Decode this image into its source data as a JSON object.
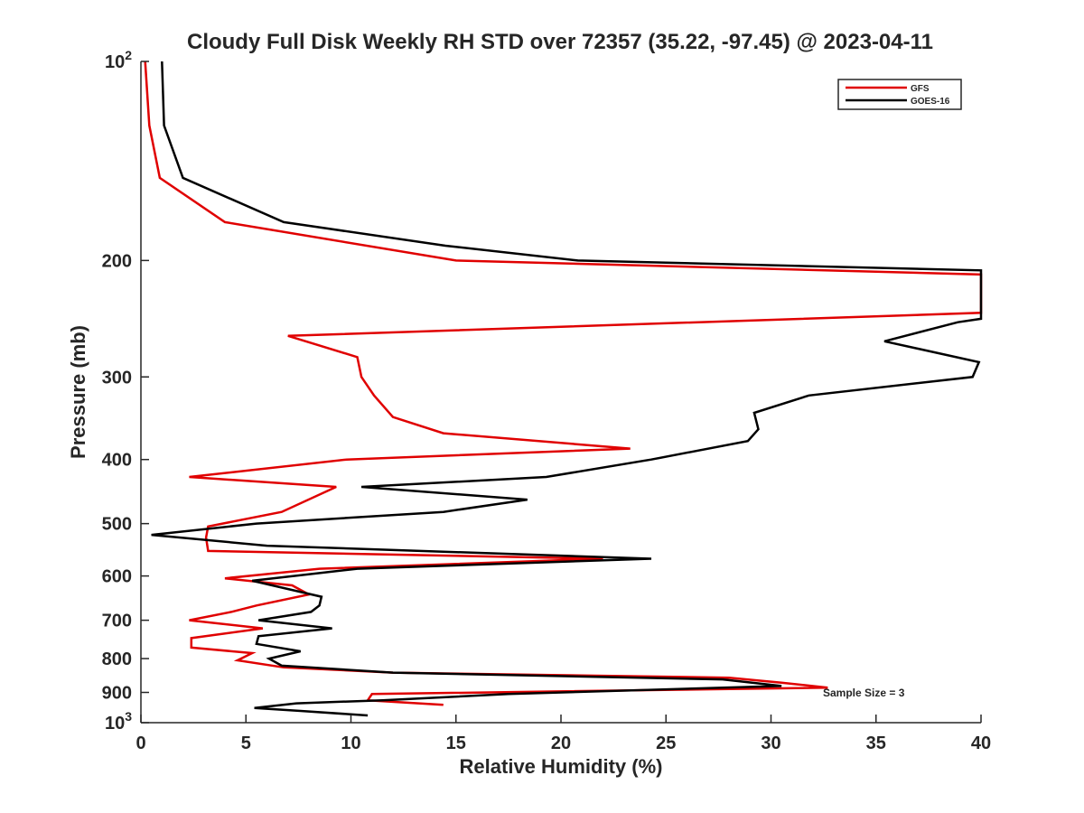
{
  "chart_data": {
    "type": "line",
    "title": "Cloudy Full Disk Weekly RH STD over 72357 (35.22, -97.45) @ 2023-04-11",
    "xlabel": "Relative Humidity (%)",
    "ylabel": "Pressure (mb)",
    "xlim": [
      0,
      40
    ],
    "ylim": [
      100,
      1000
    ],
    "y_scale": "log",
    "y_reversed": true,
    "grid": false,
    "x_ticks": [
      "0",
      "5",
      "10",
      "15",
      "20",
      "25",
      "30",
      "35",
      "40"
    ],
    "y_ticks": [
      {
        "value": 100,
        "base": "10",
        "exp": "2"
      },
      {
        "value": 200,
        "label": "200"
      },
      {
        "value": 300,
        "label": "300"
      },
      {
        "value": 400,
        "label": "400"
      },
      {
        "value": 500,
        "label": "500"
      },
      {
        "value": 600,
        "label": "600"
      },
      {
        "value": 700,
        "label": "700"
      },
      {
        "value": 800,
        "label": "800"
      },
      {
        "value": 900,
        "label": "900"
      },
      {
        "value": 1000,
        "base": "10",
        "exp": "3"
      }
    ],
    "legend_position": "top-right",
    "annotation": "Sample Size = 3",
    "series": [
      {
        "name": "GFS",
        "color": "#e00000",
        "points": [
          [
            0.2,
            100
          ],
          [
            0.4,
            125
          ],
          [
            0.9,
            150
          ],
          [
            4.0,
            175
          ],
          [
            15.0,
            200
          ],
          [
            40,
            210
          ],
          [
            40,
            240
          ],
          [
            7.0,
            260
          ],
          [
            10.3,
            280
          ],
          [
            10.5,
            300
          ],
          [
            11.1,
            320
          ],
          [
            12.0,
            345
          ],
          [
            14.4,
            365
          ],
          [
            23.3,
            385
          ],
          [
            9.8,
            400
          ],
          [
            2.3,
            425
          ],
          [
            9.3,
            440
          ],
          [
            6.7,
            480
          ],
          [
            3.2,
            505
          ],
          [
            3.1,
            525
          ],
          [
            3.2,
            550
          ],
          [
            22.0,
            565
          ],
          [
            8.5,
            585
          ],
          [
            4.0,
            605
          ],
          [
            7.2,
            620
          ],
          [
            8.0,
            640
          ],
          [
            5.5,
            665
          ],
          [
            4.3,
            680
          ],
          [
            2.3,
            700
          ],
          [
            5.8,
            720
          ],
          [
            2.4,
            745
          ],
          [
            2.4,
            770
          ],
          [
            5.3,
            785
          ],
          [
            4.6,
            805
          ],
          [
            6.8,
            825
          ],
          [
            12.0,
            840
          ],
          [
            28.0,
            855
          ],
          [
            30.5,
            870
          ],
          [
            32.7,
            885
          ],
          [
            11.0,
            905
          ],
          [
            10.8,
            925
          ],
          [
            14.4,
            940
          ]
        ]
      },
      {
        "name": "GOES-16",
        "color": "#000000",
        "points": [
          [
            1.0,
            100
          ],
          [
            1.1,
            125
          ],
          [
            2.0,
            150
          ],
          [
            6.8,
            175
          ],
          [
            14.5,
            190
          ],
          [
            20.8,
            200
          ],
          [
            40,
            207
          ],
          [
            40,
            245
          ],
          [
            38.9,
            248
          ],
          [
            35.4,
            265
          ],
          [
            39.9,
            285
          ],
          [
            39.6,
            300
          ],
          [
            31.8,
            320
          ],
          [
            29.2,
            340
          ],
          [
            29.4,
            360
          ],
          [
            28.9,
            375
          ],
          [
            24.3,
            400
          ],
          [
            19.3,
            425
          ],
          [
            10.5,
            440
          ],
          [
            18.4,
            460
          ],
          [
            14.4,
            480
          ],
          [
            5.5,
            500
          ],
          [
            0.5,
            520
          ],
          [
            6.0,
            540
          ],
          [
            24.3,
            565
          ],
          [
            10.3,
            585
          ],
          [
            5.3,
            610
          ],
          [
            7.2,
            630
          ],
          [
            8.6,
            645
          ],
          [
            8.5,
            665
          ],
          [
            8.1,
            680
          ],
          [
            5.6,
            700
          ],
          [
            9.1,
            720
          ],
          [
            5.6,
            740
          ],
          [
            5.5,
            760
          ],
          [
            7.6,
            780
          ],
          [
            6.1,
            800
          ],
          [
            6.7,
            820
          ],
          [
            12.0,
            840
          ],
          [
            27.7,
            860
          ],
          [
            30.5,
            880
          ],
          [
            17.5,
            905
          ],
          [
            11.5,
            925
          ],
          [
            7.4,
            935
          ],
          [
            5.4,
            950
          ],
          [
            7.6,
            960
          ],
          [
            10.8,
            975
          ]
        ]
      }
    ]
  }
}
